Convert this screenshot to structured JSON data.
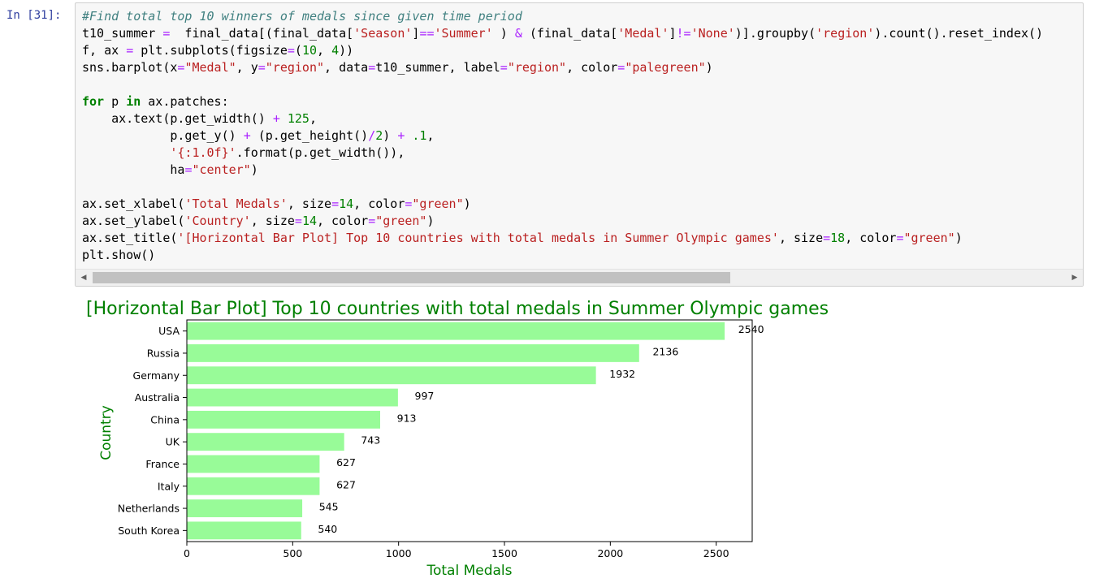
{
  "cell": {
    "prompt": "In [31]:",
    "code_lines": [
      [
        [
          "cm",
          "#Find total top 10 winners of medals since given time period"
        ]
      ],
      [
        [
          "",
          "t10_summer "
        ],
        [
          "op",
          "="
        ],
        [
          "",
          "  final_data[(final_data["
        ],
        [
          "st",
          "'Season'"
        ],
        [
          "",
          "]"
        ],
        [
          "op",
          "=="
        ],
        [
          "st",
          "'Summer'"
        ],
        [
          "",
          " ) "
        ],
        [
          "op",
          "&"
        ],
        [
          "",
          " (final_data["
        ],
        [
          "st",
          "'Medal'"
        ],
        [
          "",
          "]"
        ],
        [
          "op",
          "!="
        ],
        [
          "st",
          "'None'"
        ],
        [
          "",
          ")].groupby("
        ],
        [
          "st",
          "'region'"
        ],
        [
          "",
          ").count().reset_index()"
        ]
      ],
      [
        [
          "",
          "f, ax "
        ],
        [
          "op",
          "="
        ],
        [
          "",
          " plt.subplots(figsize"
        ],
        [
          "op",
          "="
        ],
        [
          "",
          "("
        ],
        [
          "nm",
          "10"
        ],
        [
          "",
          ", "
        ],
        [
          "nm",
          "4"
        ],
        [
          "",
          "))"
        ]
      ],
      [
        [
          "",
          "sns.barplot(x"
        ],
        [
          "op",
          "="
        ],
        [
          "st",
          "\"Medal\""
        ],
        [
          "",
          ", y"
        ],
        [
          "op",
          "="
        ],
        [
          "st",
          "\"region\""
        ],
        [
          "",
          ", data"
        ],
        [
          "op",
          "="
        ],
        [
          "",
          "t10_summer, label"
        ],
        [
          "op",
          "="
        ],
        [
          "st",
          "\"region\""
        ],
        [
          "",
          ", color"
        ],
        [
          "op",
          "="
        ],
        [
          "st",
          "\"palegreen\""
        ],
        [
          "",
          ")"
        ]
      ],
      [],
      [
        [
          "kw",
          "for"
        ],
        [
          "",
          " p "
        ],
        [
          "kw",
          "in"
        ],
        [
          "",
          " ax.patches:"
        ]
      ],
      [
        [
          "",
          "    ax.text(p.get_width() "
        ],
        [
          "op",
          "+"
        ],
        [
          "",
          ""
        ],
        [
          "nm",
          " 125"
        ],
        [
          "",
          ","
        ]
      ],
      [
        [
          "",
          "            p.get_y() "
        ],
        [
          "op",
          "+"
        ],
        [
          "",
          " (p.get_height()"
        ],
        [
          "op",
          "/"
        ],
        [
          "nm",
          "2"
        ],
        [
          "",
          ") "
        ],
        [
          "op",
          "+"
        ],
        [
          "nm",
          " .1"
        ],
        [
          "",
          ","
        ]
      ],
      [
        [
          "",
          "            "
        ],
        [
          "st",
          "'{:1.0f}'"
        ],
        [
          "",
          ".format(p.get_width()),"
        ]
      ],
      [
        [
          "",
          "            ha"
        ],
        [
          "op",
          "="
        ],
        [
          "st",
          "\"center\""
        ],
        [
          "",
          ")"
        ]
      ],
      [],
      [
        [
          "",
          "ax.set_xlabel("
        ],
        [
          "st",
          "'Total Medals'"
        ],
        [
          "",
          ", size"
        ],
        [
          "op",
          "="
        ],
        [
          "nm",
          "14"
        ],
        [
          "",
          ", color"
        ],
        [
          "op",
          "="
        ],
        [
          "st",
          "\"green\""
        ],
        [
          "",
          ")"
        ]
      ],
      [
        [
          "",
          "ax.set_ylabel("
        ],
        [
          "st",
          "'Country'"
        ],
        [
          "",
          ", size"
        ],
        [
          "op",
          "="
        ],
        [
          "nm",
          "14"
        ],
        [
          "",
          ", color"
        ],
        [
          "op",
          "="
        ],
        [
          "st",
          "\"green\""
        ],
        [
          "",
          ")"
        ]
      ],
      [
        [
          "",
          "ax.set_title("
        ],
        [
          "st",
          "'[Horizontal Bar Plot] Top 10 countries with total medals in Summer Olympic games'"
        ],
        [
          "",
          ", size"
        ],
        [
          "op",
          "="
        ],
        [
          "nm",
          "18"
        ],
        [
          "",
          ", color"
        ],
        [
          "op",
          "="
        ],
        [
          "st",
          "\"green\""
        ],
        [
          "",
          ")"
        ]
      ],
      [
        [
          "",
          "plt.show()"
        ]
      ]
    ],
    "scroll_left": "◀",
    "scroll_right": "▶"
  },
  "chart_data": {
    "type": "bar",
    "orientation": "horizontal",
    "title": "[Horizontal Bar Plot] Top 10 countries with total medals in Summer Olympic games",
    "xlabel": "Total Medals",
    "ylabel": "Country",
    "categories": [
      "USA",
      "Russia",
      "Germany",
      "Australia",
      "China",
      "UK",
      "France",
      "Italy",
      "Netherlands",
      "South Korea"
    ],
    "values": [
      2540,
      2136,
      1932,
      997,
      913,
      743,
      627,
      627,
      545,
      540
    ],
    "data_labels": [
      "2540",
      "2136",
      "1932",
      "997",
      "913",
      "743",
      "627",
      "627",
      "545",
      "540"
    ],
    "xlim": [
      0,
      2670
    ],
    "xticks": [
      0,
      500,
      1000,
      1500,
      2000,
      2500
    ],
    "bar_color": "#98fb98",
    "label_color": "#008000",
    "grid": false,
    "legend": "none"
  }
}
